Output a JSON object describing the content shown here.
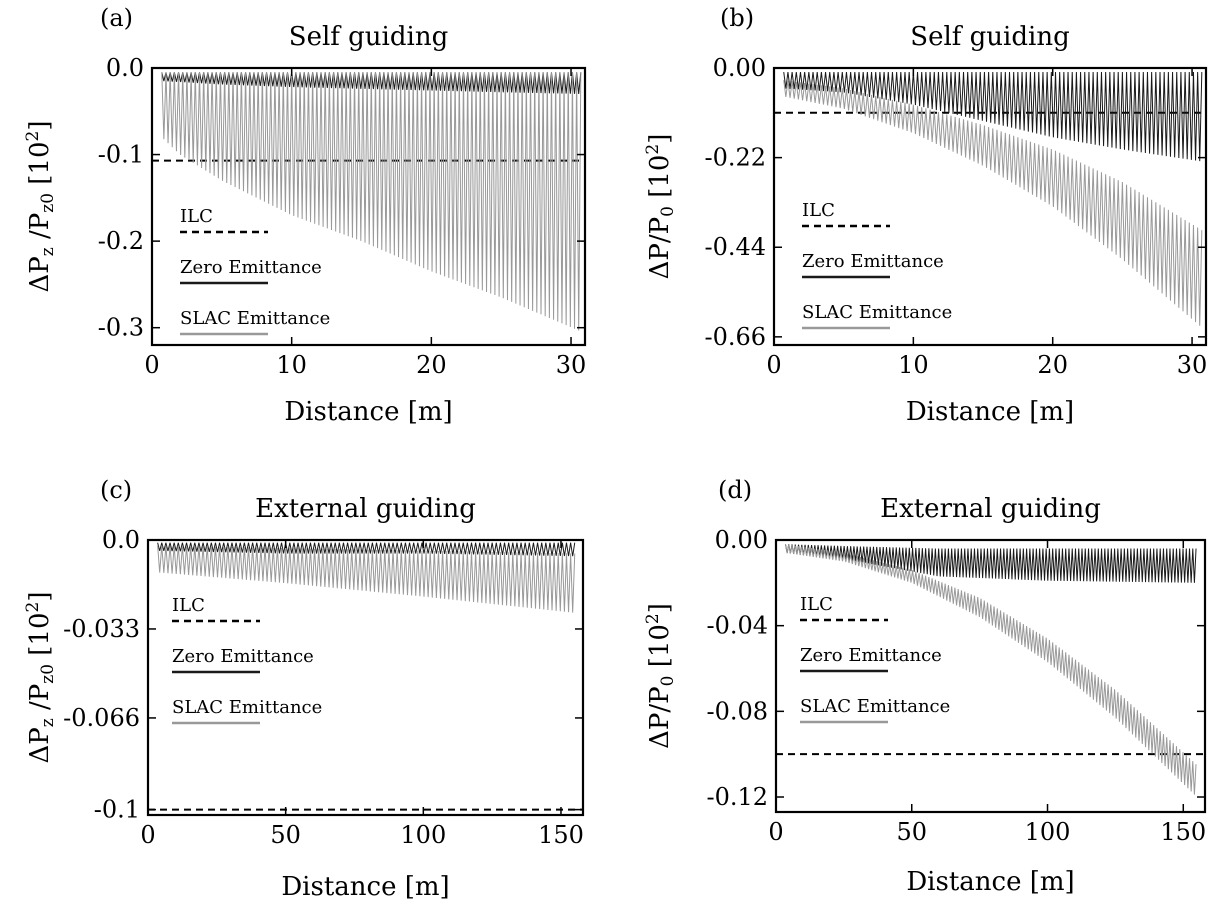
{
  "figure": {
    "legend_labels": [
      "ILC",
      "Zero Emittance",
      "SLAC Emittance"
    ]
  },
  "chart_data": [
    {
      "panel_label": "(a)",
      "title": "Self guiding",
      "type": "line",
      "xlabel": "Distance [m]",
      "ylabel": "ΔPz /Pz0 [10^2]",
      "xlim": [
        0,
        31
      ],
      "ylim": [
        -0.32,
        0.0
      ],
      "x_ticks": [
        "0",
        "10",
        "20",
        "30"
      ],
      "y_ticks": [
        "0.0",
        "-0.1",
        "-0.2",
        "-0.3"
      ],
      "y_tick_values": [
        0.0,
        -0.1,
        -0.2,
        -0.3
      ],
      "legend": {
        "placement": "left",
        "entries": [
          "ILC",
          "Zero Emittance",
          "SLAC Emittance"
        ]
      },
      "series": [
        {
          "name": "ILC",
          "style": "dashed",
          "color": "#000000",
          "x": [
            0,
            31
          ],
          "y": [
            -0.107,
            -0.107
          ]
        },
        {
          "name": "Zero Emittance",
          "style": "oscillating",
          "color": "#1a1a1a",
          "x_start": 0.7,
          "x_end": 30.8,
          "period": 0.3,
          "upper_x": [
            0.7,
            30.8
          ],
          "upper_y": [
            -0.005,
            -0.005
          ],
          "lower_x": [
            0.7,
            5,
            10,
            15,
            20,
            25,
            30.8
          ],
          "lower_y": [
            -0.015,
            -0.019,
            -0.022,
            -0.024,
            -0.026,
            -0.028,
            -0.03
          ]
        },
        {
          "name": "SLAC Emittance",
          "style": "oscillating",
          "color": "#999999",
          "x_start": 0.7,
          "x_end": 30.8,
          "period": 0.3,
          "upper_x": [
            0.7,
            30.8
          ],
          "upper_y": [
            -0.005,
            -0.005
          ],
          "lower_x": [
            0.7,
            2,
            5,
            10,
            15,
            20,
            25,
            30.8
          ],
          "lower_y": [
            -0.08,
            -0.1,
            -0.13,
            -0.17,
            -0.2,
            -0.235,
            -0.265,
            -0.305
          ]
        }
      ]
    },
    {
      "panel_label": "(b)",
      "title": "Self guiding",
      "type": "line",
      "xlabel": "Distance [m]",
      "ylabel": "ΔP/P0 [10^2]",
      "xlim": [
        0,
        31
      ],
      "ylim": [
        -0.68,
        0.0
      ],
      "x_ticks": [
        "0",
        "10",
        "20",
        "30"
      ],
      "y_ticks": [
        "0.00",
        "-0.22",
        "-0.44",
        "-0.66"
      ],
      "y_tick_values": [
        0.0,
        -0.22,
        -0.44,
        -0.66
      ],
      "legend": {
        "placement": "left",
        "entries": [
          "ILC",
          "Zero Emittance",
          "SLAC Emittance"
        ]
      },
      "series": [
        {
          "name": "ILC",
          "style": "dashed",
          "color": "#000000",
          "x": [
            0,
            31
          ],
          "y": [
            -0.11,
            -0.11
          ]
        },
        {
          "name": "Zero Emittance",
          "style": "oscillating",
          "color": "#1a1a1a",
          "x_start": 0.7,
          "x_end": 30.8,
          "period": 0.3,
          "upper_x": [
            0.7,
            30.8
          ],
          "upper_y": [
            -0.01,
            -0.01
          ],
          "lower_x": [
            0.7,
            5,
            10,
            15,
            20,
            25,
            30.8
          ],
          "lower_y": [
            -0.05,
            -0.06,
            -0.09,
            -0.13,
            -0.17,
            -0.2,
            -0.23
          ]
        },
        {
          "name": "SLAC Emittance",
          "style": "oscillating",
          "color": "#999999",
          "x_start": 0.7,
          "x_end": 30.8,
          "period": 0.3,
          "upper_x": [
            0.7,
            5,
            10,
            15,
            20,
            25,
            30.8
          ],
          "upper_y": [
            -0.03,
            -0.05,
            -0.09,
            -0.14,
            -0.2,
            -0.28,
            -0.4
          ],
          "lower_x": [
            0.7,
            5,
            10,
            15,
            20,
            25,
            30.8
          ],
          "lower_y": [
            -0.07,
            -0.1,
            -0.16,
            -0.24,
            -0.34,
            -0.47,
            -0.64
          ]
        }
      ]
    },
    {
      "panel_label": "(c)",
      "title": "External guiding",
      "type": "line",
      "xlabel": "Distance [m]",
      "ylabel": "ΔPz /Pz0 [10^2]",
      "xlim": [
        0,
        158
      ],
      "ylim": [
        -0.102,
        0.0
      ],
      "x_ticks": [
        "0",
        "50",
        "100",
        "150"
      ],
      "y_ticks": [
        "0.0",
        "-0.033",
        "-0.066",
        "-0.1"
      ],
      "y_tick_values": [
        0.0,
        -0.033,
        -0.066,
        -0.1
      ],
      "legend": {
        "placement": "left",
        "entries": [
          "ILC",
          "Zero Emittance",
          "SLAC Emittance"
        ]
      },
      "series": [
        {
          "name": "ILC",
          "style": "dashed",
          "color": "#000000",
          "x": [
            0,
            158
          ],
          "y": [
            -0.1,
            -0.1
          ]
        },
        {
          "name": "Zero Emittance",
          "style": "oscillating",
          "color": "#1a1a1a",
          "x_start": 3.5,
          "x_end": 155,
          "period": 1.5,
          "upper_x": [
            3.5,
            155
          ],
          "upper_y": [
            -0.001,
            -0.001
          ],
          "lower_x": [
            3.5,
            50,
            100,
            155
          ],
          "lower_y": [
            -0.004,
            -0.005,
            -0.005,
            -0.006
          ]
        },
        {
          "name": "SLAC Emittance",
          "style": "oscillating",
          "color": "#999999",
          "x_start": 3.5,
          "x_end": 155,
          "period": 1.5,
          "upper_x": [
            3.5,
            50,
            100,
            155
          ],
          "upper_y": [
            -0.002,
            -0.003,
            -0.004,
            -0.005
          ],
          "lower_x": [
            3.5,
            50,
            100,
            155
          ],
          "lower_y": [
            -0.012,
            -0.016,
            -0.021,
            -0.027
          ]
        }
      ]
    },
    {
      "panel_label": "(d)",
      "title": "External guiding",
      "type": "line",
      "xlabel": "Distance [m]",
      "ylabel": "ΔP/P0 [10^2]",
      "xlim": [
        0,
        158
      ],
      "ylim": [
        -0.127,
        0.0
      ],
      "x_ticks": [
        "0",
        "50",
        "100",
        "150"
      ],
      "y_ticks": [
        "0.00",
        "-0.04",
        "-0.08",
        "-0.12"
      ],
      "y_tick_values": [
        0.0,
        -0.04,
        -0.08,
        -0.12
      ],
      "legend": {
        "placement": "left",
        "entries": [
          "ILC",
          "Zero Emittance",
          "SLAC Emittance"
        ]
      },
      "series": [
        {
          "name": "ILC",
          "style": "dashed",
          "color": "#000000",
          "x": [
            0,
            158
          ],
          "y": [
            -0.1,
            -0.1
          ]
        },
        {
          "name": "Zero Emittance",
          "style": "oscillating",
          "color": "#1a1a1a",
          "x_start": 3.5,
          "x_end": 155,
          "period": 1.2,
          "upper_x": [
            3.5,
            30,
            60,
            100,
            155
          ],
          "upper_y": [
            -0.002,
            -0.003,
            -0.004,
            -0.004,
            -0.004
          ],
          "lower_x": [
            3.5,
            30,
            60,
            100,
            155
          ],
          "lower_y": [
            -0.006,
            -0.01,
            -0.017,
            -0.019,
            -0.02
          ]
        },
        {
          "name": "SLAC Emittance",
          "style": "oscillating",
          "color": "#999999",
          "x_start": 3.5,
          "x_end": 155,
          "period": 1.2,
          "upper_x": [
            3.5,
            25,
            50,
            75,
            100,
            125,
            155
          ],
          "upper_y": [
            -0.002,
            -0.006,
            -0.014,
            -0.027,
            -0.046,
            -0.07,
            -0.105
          ],
          "lower_x": [
            3.5,
            25,
            50,
            75,
            100,
            125,
            155
          ],
          "lower_y": [
            -0.006,
            -0.01,
            -0.02,
            -0.036,
            -0.057,
            -0.083,
            -0.12
          ]
        }
      ]
    }
  ]
}
